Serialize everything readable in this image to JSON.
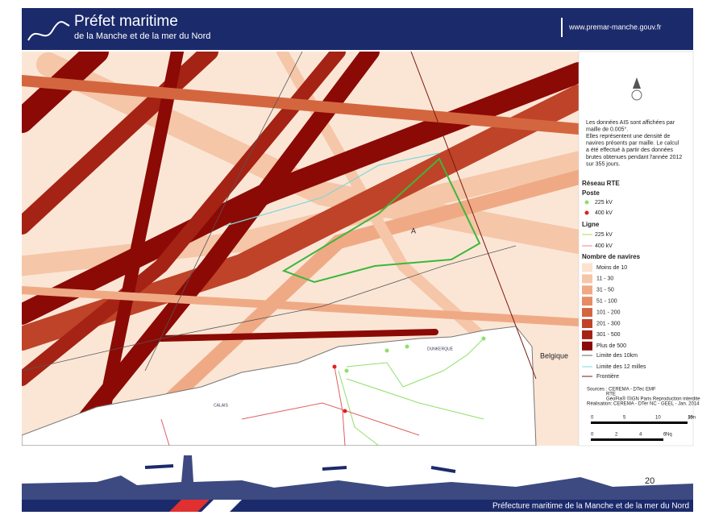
{
  "header": {
    "title": "Préfet maritime",
    "subtitle": "de la Manche et de la mer du Nord",
    "url": "www.premar-manche.gouv.fr"
  },
  "map": {
    "labels": {
      "zone": "A",
      "country": "Belgique",
      "city1": "CALAIS",
      "city2": "DUNKERQUE"
    }
  },
  "legend": {
    "note": [
      "Les données AIS sont affichées par",
      "maille de 0.005°.",
      "Elles représentent une densité de",
      "navires présents par maille. Le calcul",
      "a été effectué à partir des données",
      "brutes obtenues pendant l'année 2012",
      "sur 355 jours."
    ],
    "network_title": "Réseau RTE",
    "station_title": "Poste",
    "stations": [
      "225 kV",
      "400 kV"
    ],
    "line_title": "Ligne",
    "lines": [
      "225 kV",
      "400 kV"
    ],
    "density_title": "Nombre de navires",
    "classes": [
      "Moins de 10",
      "11 - 30",
      "31 - 50",
      "51 - 100",
      "101 - 200",
      "201 - 300",
      "301 - 500",
      "Plus de 500"
    ],
    "limits": [
      "Limite des 10km",
      "Limite des 12 milles",
      "Frontière"
    ],
    "sources": [
      "Sources : CEREMA - DTec EMF",
      "RTE",
      "GéoFla® ©IGN Paris Reproduction interdite",
      "Réalisation: CEREMA - DTer NC - GEEL - Jan. 2014"
    ],
    "scale_km": [
      "0",
      "5",
      "10",
      "15",
      "km"
    ],
    "scale_nq": [
      "0",
      "2",
      "4",
      "6",
      "Nq"
    ]
  },
  "footer": {
    "page": "20",
    "text": "Préfecture maritime de la Manche et de la mer du Nord"
  }
}
